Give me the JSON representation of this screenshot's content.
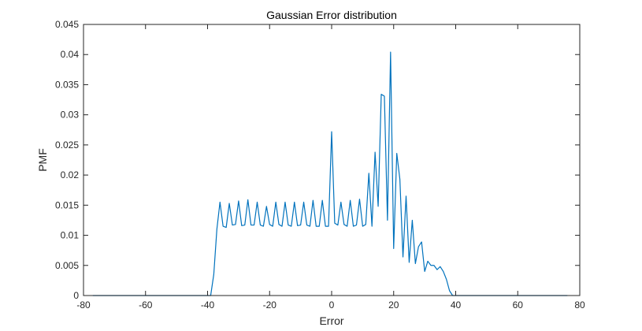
{
  "chart_data": {
    "type": "line",
    "title": "Gaussian Error distribution",
    "xlabel": "Error",
    "ylabel": "PMF",
    "xlim": [
      -80,
      80
    ],
    "ylim": [
      0,
      0.045
    ],
    "xticks": [
      "-80",
      "-60",
      "-40",
      "-20",
      "0",
      "20",
      "40",
      "60",
      "80"
    ],
    "yticks": [
      "0",
      "0.005",
      "0.01",
      "0.015",
      "0.02",
      "0.025",
      "0.03",
      "0.035",
      "0.04",
      "0.045"
    ],
    "grid": false,
    "series": [
      {
        "color": "#0072BD",
        "x": [
          -77,
          -39,
          -38,
          -37,
          -36,
          -35,
          -34,
          -33,
          -32,
          -31,
          -30,
          -29,
          -28,
          -27,
          -26,
          -25,
          -24,
          -23,
          -22,
          -21,
          -20,
          -19,
          -18,
          -17,
          -16,
          -15,
          -14,
          -13,
          -12,
          -11,
          -10,
          -9,
          -8,
          -7,
          -6,
          -5,
          -4,
          -3,
          -2,
          -1,
          0,
          1,
          2,
          3,
          4,
          5,
          6,
          7,
          8,
          9,
          10,
          11,
          12,
          13,
          14,
          15,
          16,
          17,
          18,
          19,
          20,
          21,
          22,
          23,
          24,
          25,
          26,
          27,
          28,
          29,
          30,
          31,
          32,
          33,
          34,
          35,
          36,
          37,
          38,
          39,
          76
        ],
        "y": [
          0,
          0,
          0.0035,
          0.011,
          0.0155,
          0.0115,
          0.0113,
          0.0153,
          0.0117,
          0.0118,
          0.0157,
          0.0116,
          0.0117,
          0.0159,
          0.0117,
          0.0117,
          0.0155,
          0.0117,
          0.0115,
          0.0148,
          0.0118,
          0.0115,
          0.0155,
          0.0118,
          0.0115,
          0.0155,
          0.0117,
          0.0115,
          0.0155,
          0.0116,
          0.0117,
          0.0155,
          0.0117,
          0.0115,
          0.0158,
          0.0115,
          0.0115,
          0.0158,
          0.0115,
          0.0115,
          0.0272,
          0.012,
          0.0117,
          0.0155,
          0.0118,
          0.0115,
          0.0158,
          0.0115,
          0.0117,
          0.016,
          0.0115,
          0.0118,
          0.0203,
          0.0115,
          0.0238,
          0.0148,
          0.0334,
          0.0331,
          0.0125,
          0.0404,
          0.0078,
          0.0236,
          0.0193,
          0.0064,
          0.0165,
          0.0055,
          0.0125,
          0.0053,
          0.0081,
          0.0089,
          0.004,
          0.0057,
          0.005,
          0.005,
          0.0043,
          0.0048,
          0.004,
          0.0027,
          0.0008,
          0,
          0
        ]
      }
    ]
  }
}
